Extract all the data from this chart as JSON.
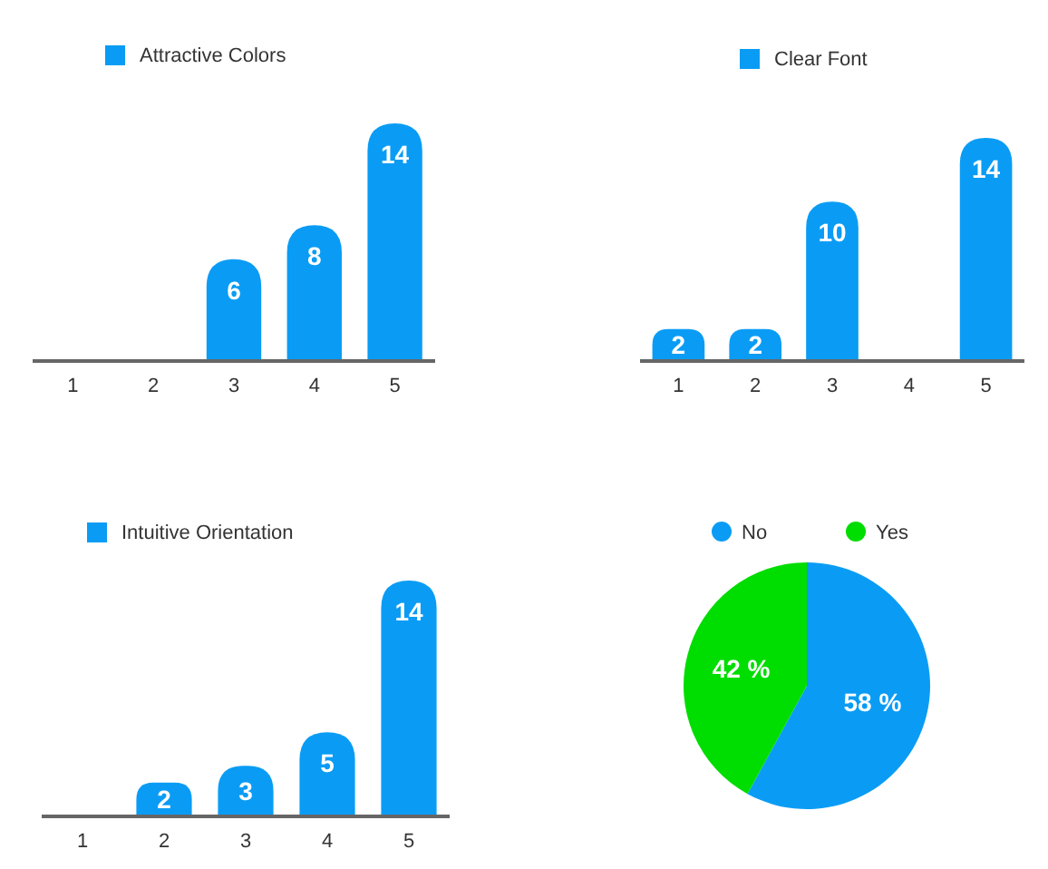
{
  "chart_data": [
    {
      "type": "bar",
      "categories": [
        "1",
        "2",
        "3",
        "4",
        "5"
      ],
      "series": [
        {
          "name": "Attractive Colors",
          "color": "#0a9cf5",
          "values": [
            null,
            null,
            6,
            8,
            14
          ]
        }
      ],
      "data_labels": true,
      "legend": "top left"
    },
    {
      "type": "bar",
      "categories": [
        "1",
        "2",
        "3",
        "4",
        "5"
      ],
      "series": [
        {
          "name": "Clear Font",
          "color": "#0a9cf5",
          "values": [
            2,
            2,
            10,
            null,
            14
          ]
        }
      ],
      "data_labels": true,
      "legend": "top left"
    },
    {
      "type": "bar",
      "categories": [
        "1",
        "2",
        "3",
        "4",
        "5"
      ],
      "series": [
        {
          "name": "Intuitive Orientation",
          "color": "#0a9cf5",
          "values": [
            null,
            2,
            3,
            5,
            14
          ]
        }
      ],
      "data_labels": true,
      "legend": "top left"
    },
    {
      "type": "pie",
      "categories": [
        "No",
        "Yes"
      ],
      "values": [
        58,
        42
      ],
      "colors": [
        "#0a9cf5",
        "#00dd00"
      ],
      "value_labels": [
        "58 %",
        "42 %"
      ],
      "legend": "top"
    }
  ]
}
